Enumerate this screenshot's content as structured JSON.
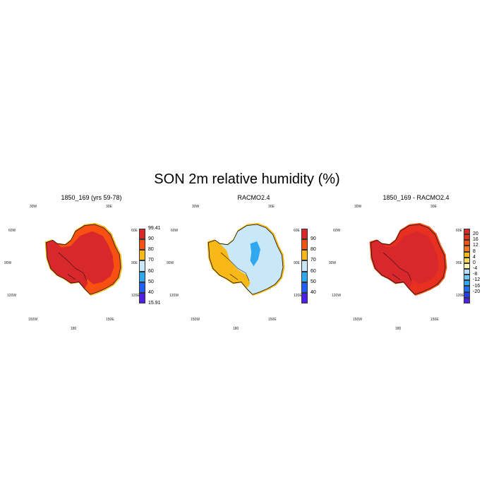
{
  "title": "SON 2m relative humidity (%)",
  "coord_labels": {
    "top_left": "30W",
    "top_right": "30E",
    "left_upper": "60W",
    "left_mid": "90W",
    "left_lower": "120W",
    "bottom_left": "150W",
    "bottom_mid": "180",
    "bottom_right": "150E",
    "right_upper": "60E",
    "right_mid": "90E",
    "right_lower": "120E"
  },
  "panels": [
    {
      "title": "1850_169 (yrs 59-78)",
      "colors": [
        "#5020e8",
        "#2060ff",
        "#30a8f0",
        "#c8e8f8",
        "#f8b818",
        "#f85010",
        "#d8282c"
      ],
      "levels": [
        "99.41",
        "90",
        "80",
        "70",
        "60",
        "50",
        "40",
        "15.91"
      ],
      "fills": {
        "interior": "#d8282c",
        "ring": "#f85010",
        "edge": "#f8b818",
        "west": "#d8282c"
      }
    },
    {
      "title": "RACMO2.4",
      "colors": [
        "#5020e8",
        "#2060ff",
        "#30a8f0",
        "#c8e8f8",
        "#f8b818",
        "#f85010",
        "#d8282c"
      ],
      "levels": [
        "90",
        "80",
        "70",
        "60",
        "50",
        "40"
      ],
      "fills": {
        "interior": "#c8e8f8",
        "ring": "#c8e8f8",
        "edge": "#f8b818",
        "west": "#f8b818"
      }
    },
    {
      "title": "1850_169 - RACMO2.4",
      "colors": [
        "#5020e8",
        "#2040f8",
        "#2070ff",
        "#30a8f0",
        "#70c8f8",
        "#b8e0f8",
        "#fff8b0",
        "#f8d860",
        "#f8b818",
        "#f87820",
        "#f85010",
        "#e83020",
        "#d8282c"
      ],
      "levels": [
        "20",
        "16",
        "12",
        "8",
        "4",
        "0",
        "-4",
        "-8",
        "-12",
        "-16",
        "-20"
      ],
      "fills": {
        "interior": "#d8282c",
        "ring": "#e83020",
        "edge": "#f85010",
        "west": "#d8282c"
      }
    }
  ]
}
